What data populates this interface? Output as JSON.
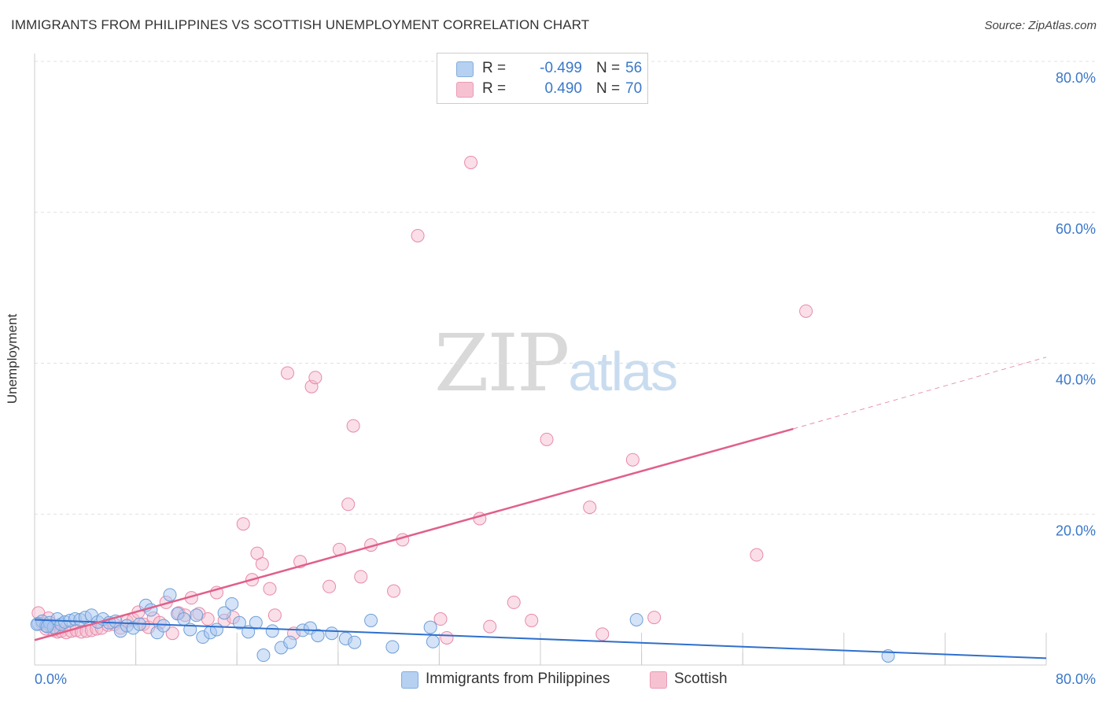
{
  "header": {
    "title": "IMMIGRANTS FROM PHILIPPINES VS SCOTTISH UNEMPLOYMENT CORRELATION CHART",
    "source": "Source: ZipAtlas.com"
  },
  "watermark": {
    "zip": "ZIP",
    "atlas": "atlas"
  },
  "legend": {
    "series1": {
      "r_label": "R =",
      "r_value": "-0.499",
      "n_label": "N =",
      "n_value": "56",
      "color": "#a9c8ef"
    },
    "series2": {
      "r_label": "R =",
      "r_value": "0.490",
      "n_label": "N =",
      "n_value": "70",
      "color": "#f5b8cb"
    }
  },
  "bottom_legend": {
    "item1": "Immigrants from Philippines",
    "item2": "Scottish"
  },
  "colors": {
    "blue_fill": "#a9c8ef",
    "blue_stroke": "#6f9fd8",
    "blue_line": "#2f6fcc",
    "pink_fill": "#f5b8cb",
    "pink_stroke": "#e88aa8",
    "pink_line": "#e0608a",
    "tick_label": "#3a78c9",
    "grid": "#e0e0e0"
  },
  "chart_data": {
    "type": "scatter",
    "title": "IMMIGRANTS FROM PHILIPPINES VS SCOTTISH UNEMPLOYMENT CORRELATION CHART",
    "ylabel": "Unemployment",
    "xlabel": "",
    "xlim": [
      0,
      80
    ],
    "ylim": [
      0,
      80
    ],
    "x_tick_labels": [
      "0.0%",
      "80.0%"
    ],
    "y_ticks": [
      {
        "value": 20,
        "label": "20.0%"
      },
      {
        "value": 40,
        "label": "40.0%"
      },
      {
        "value": 60,
        "label": "60.0%"
      },
      {
        "value": 80,
        "label": "80.0%"
      }
    ],
    "grid": true,
    "series": [
      {
        "name": "Immigrants from Philippines",
        "r": -0.499,
        "n": 56,
        "trend": {
          "x0": 0,
          "y0": 6.0,
          "x1": 80,
          "y1": 0.9
        },
        "points": [
          [
            0.3,
            5.5
          ],
          [
            0.6,
            5.8
          ],
          [
            0.9,
            5.2
          ],
          [
            1.2,
            5.6
          ],
          [
            1.5,
            5.0
          ],
          [
            1.8,
            6.1
          ],
          [
            2.1,
            5.4
          ],
          [
            2.4,
            5.7
          ],
          [
            2.8,
            5.9
          ],
          [
            3.2,
            6.1
          ],
          [
            3.6,
            6.0
          ],
          [
            4.0,
            6.3
          ],
          [
            4.5,
            6.6
          ],
          [
            5.0,
            5.7
          ],
          [
            5.4,
            6.1
          ],
          [
            5.9,
            5.6
          ],
          [
            6.4,
            5.8
          ],
          [
            6.8,
            4.5
          ],
          [
            7.3,
            5.2
          ],
          [
            7.8,
            4.9
          ],
          [
            8.3,
            5.4
          ],
          [
            8.8,
            7.9
          ],
          [
            9.2,
            7.3
          ],
          [
            9.7,
            4.3
          ],
          [
            10.2,
            5.2
          ],
          [
            10.7,
            9.3
          ],
          [
            11.3,
            6.8
          ],
          [
            11.8,
            6.1
          ],
          [
            12.3,
            4.7
          ],
          [
            12.8,
            6.6
          ],
          [
            13.3,
            3.7
          ],
          [
            13.9,
            4.3
          ],
          [
            14.4,
            4.7
          ],
          [
            15.0,
            6.9
          ],
          [
            15.6,
            8.1
          ],
          [
            16.2,
            5.6
          ],
          [
            16.9,
            4.4
          ],
          [
            17.5,
            5.6
          ],
          [
            18.1,
            1.3
          ],
          [
            18.8,
            4.5
          ],
          [
            19.5,
            2.3
          ],
          [
            20.2,
            3.0
          ],
          [
            21.2,
            4.6
          ],
          [
            21.8,
            4.9
          ],
          [
            22.4,
            3.9
          ],
          [
            23.5,
            4.2
          ],
          [
            24.6,
            3.5
          ],
          [
            25.3,
            3.0
          ],
          [
            26.6,
            5.9
          ],
          [
            28.3,
            2.4
          ],
          [
            31.3,
            5.0
          ],
          [
            31.5,
            3.1
          ],
          [
            47.6,
            6.0
          ],
          [
            67.5,
            1.2
          ],
          [
            0.2,
            5.4
          ],
          [
            1.0,
            5.1
          ]
        ]
      },
      {
        "name": "Scottish",
        "r": 0.49,
        "n": 70,
        "trend": {
          "x0": 0,
          "y0": 3.3,
          "x1": 60,
          "y1": 31.3,
          "dash_x1": 80,
          "dash_y1": 40.8
        },
        "points": [
          [
            0.3,
            6.9
          ],
          [
            0.6,
            5.5
          ],
          [
            0.9,
            4.8
          ],
          [
            1.2,
            5.3
          ],
          [
            1.5,
            4.6
          ],
          [
            1.8,
            4.4
          ],
          [
            2.1,
            4.5
          ],
          [
            2.5,
            4.3
          ],
          [
            2.9,
            4.5
          ],
          [
            3.3,
            4.6
          ],
          [
            3.7,
            4.4
          ],
          [
            4.1,
            4.5
          ],
          [
            4.5,
            4.6
          ],
          [
            4.9,
            4.8
          ],
          [
            5.3,
            4.9
          ],
          [
            5.8,
            5.3
          ],
          [
            6.3,
            5.4
          ],
          [
            6.8,
            4.9
          ],
          [
            7.3,
            5.8
          ],
          [
            7.8,
            6.0
          ],
          [
            8.2,
            7.0
          ],
          [
            8.6,
            5.4
          ],
          [
            9.0,
            5.0
          ],
          [
            9.4,
            6.2
          ],
          [
            9.9,
            5.6
          ],
          [
            10.4,
            8.3
          ],
          [
            10.9,
            4.2
          ],
          [
            11.4,
            6.9
          ],
          [
            11.9,
            6.6
          ],
          [
            12.4,
            8.9
          ],
          [
            13.0,
            6.8
          ],
          [
            13.7,
            6.1
          ],
          [
            14.4,
            9.6
          ],
          [
            15.0,
            5.9
          ],
          [
            15.7,
            6.3
          ],
          [
            16.5,
            18.7
          ],
          [
            17.2,
            11.3
          ],
          [
            17.6,
            14.8
          ],
          [
            18.0,
            13.4
          ],
          [
            18.6,
            10.1
          ],
          [
            19.0,
            6.6
          ],
          [
            20.0,
            38.7
          ],
          [
            20.5,
            4.2
          ],
          [
            21.0,
            13.7
          ],
          [
            21.9,
            36.9
          ],
          [
            22.2,
            38.1
          ],
          [
            23.3,
            10.4
          ],
          [
            24.1,
            15.3
          ],
          [
            24.8,
            21.3
          ],
          [
            25.2,
            31.7
          ],
          [
            25.8,
            11.7
          ],
          [
            26.6,
            15.9
          ],
          [
            28.4,
            9.8
          ],
          [
            29.1,
            16.6
          ],
          [
            30.3,
            56.9
          ],
          [
            32.1,
            6.1
          ],
          [
            34.5,
            66.6
          ],
          [
            35.2,
            19.4
          ],
          [
            36.0,
            5.1
          ],
          [
            37.9,
            8.3
          ],
          [
            39.3,
            5.9
          ],
          [
            40.5,
            29.9
          ],
          [
            43.9,
            20.9
          ],
          [
            44.9,
            4.1
          ],
          [
            47.3,
            27.2
          ],
          [
            49.0,
            6.3
          ],
          [
            57.1,
            14.6
          ],
          [
            61.0,
            46.9
          ],
          [
            32.6,
            3.6
          ],
          [
            1.1,
            6.2
          ]
        ]
      }
    ]
  }
}
